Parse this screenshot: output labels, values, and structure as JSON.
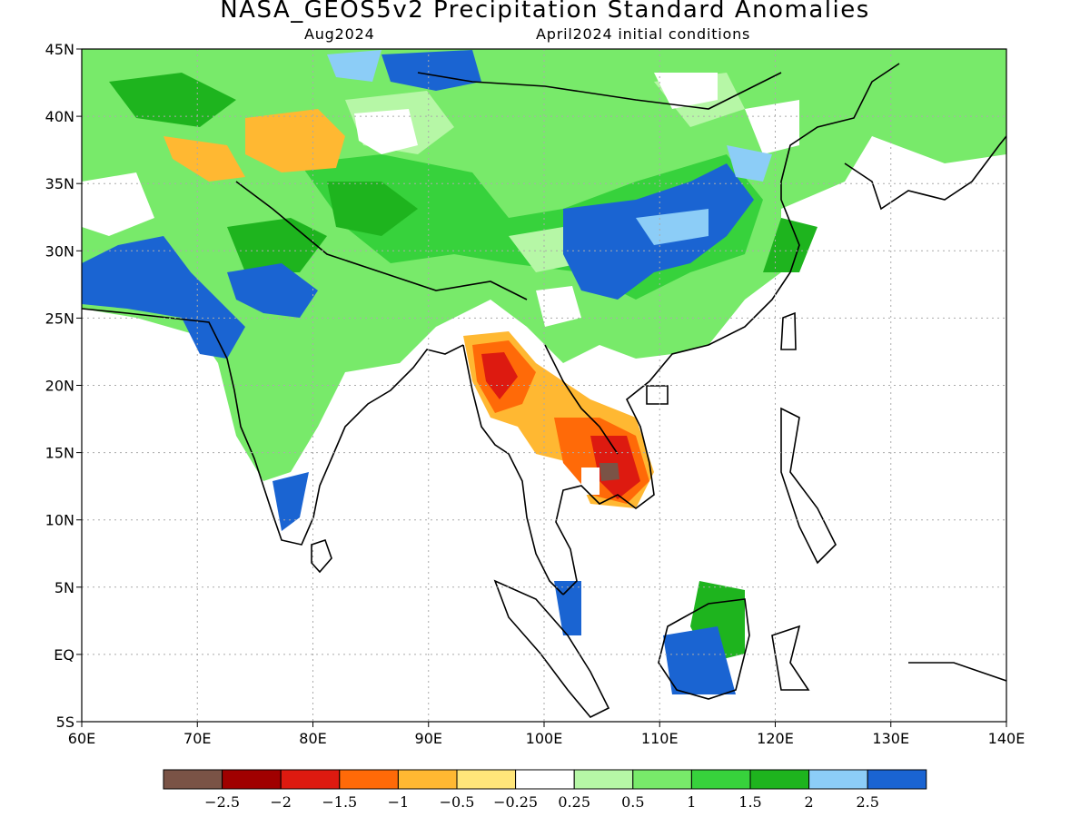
{
  "title": "NASA_GEOS5v2 Precipitation Standard Anomalies",
  "subtitle_left": "Aug2024",
  "subtitle_right": "April2024 initial conditions",
  "lat_labels": [
    "45N",
    "40N",
    "35N",
    "30N",
    "25N",
    "20N",
    "15N",
    "10N",
    "5N",
    "EQ",
    "5S"
  ],
  "lon_labels": [
    "60E",
    "70E",
    "80E",
    "90E",
    "100E",
    "110E",
    "120E",
    "130E",
    "140E"
  ],
  "colorbar": {
    "colors": [
      "#7a5346",
      "#a00000",
      "#dd1a10",
      "#ff6a08",
      "#ffb832",
      "#ffe67a",
      "#ffffff",
      "#b6f7a6",
      "#78ea6a",
      "#37d23c",
      "#1eb41e",
      "#8ccdf7",
      "#1a64d2"
    ],
    "labels": [
      "-2.5",
      "-2",
      "-1.5",
      "-1",
      "-0.5",
      "-0.25",
      "0.25",
      "0.5",
      "1",
      "1.5",
      "2",
      "2.5"
    ]
  }
}
